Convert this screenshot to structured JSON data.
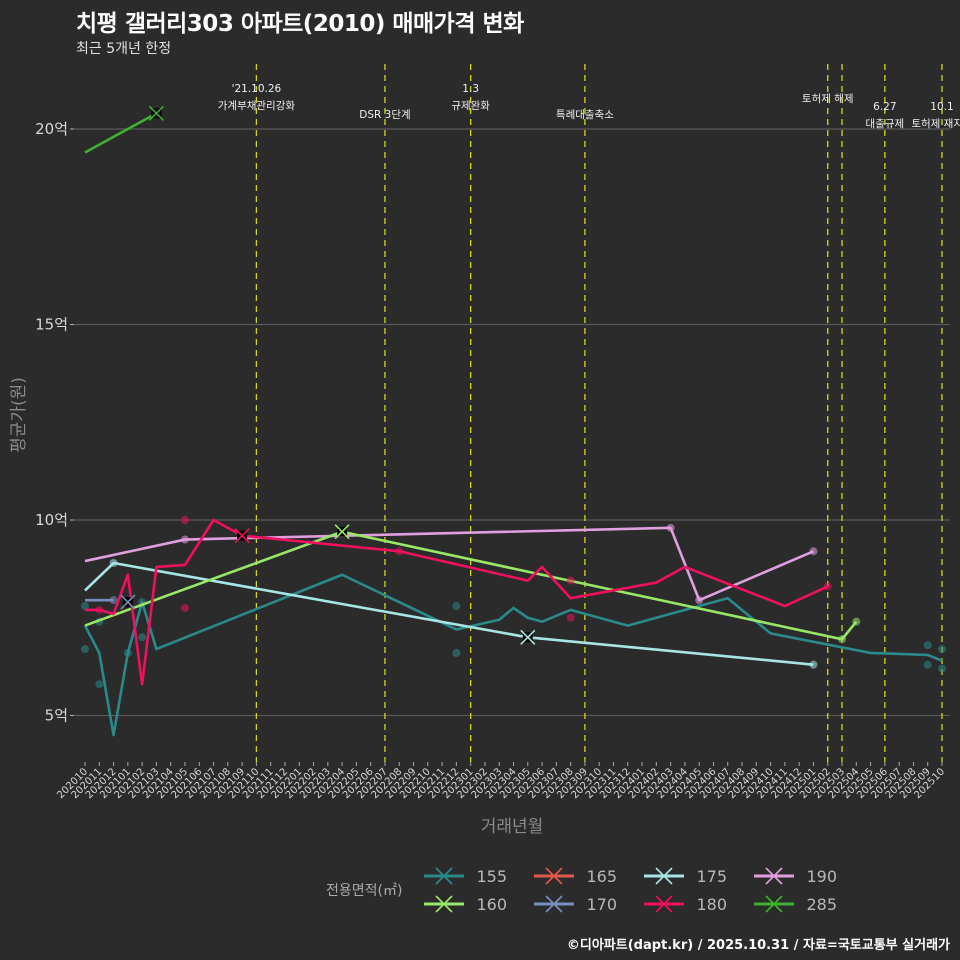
{
  "header": {
    "title": "치평 갤러리303 아파트(2010) 매매가격 변화",
    "subtitle": "최근 5개년 한정"
  },
  "footer": {
    "credit": "©디아파트(dapt.kr) / 2025.10.31 / 자료=국토교통부 실거래가"
  },
  "legend": {
    "title": "전용면적(㎡)",
    "items": [
      {
        "label": "155",
        "color": "#2a8a8a"
      },
      {
        "label": "165",
        "color": "#e0584c"
      },
      {
        "label": "175",
        "color": "#a8e6e6"
      },
      {
        "label": "190",
        "color": "#e0a0e0"
      },
      {
        "label": "160",
        "color": "#98e868"
      },
      {
        "label": "170",
        "color": "#7890c0"
      },
      {
        "label": "180",
        "color": "#f0105f"
      },
      {
        "label": "285",
        "color": "#40b030"
      }
    ]
  },
  "chart_data": {
    "type": "line",
    "title": "치평 갤러리303 아파트(2010) 매매가격 변화",
    "subtitle": "최근 5개년 한정",
    "xlabel": "거래년월",
    "ylabel": "평균가(원)",
    "ylim": [
      3.8,
      21.6
    ],
    "yticks": [
      {
        "value": 5,
        "label": "5억"
      },
      {
        "value": 10,
        "label": "10억"
      },
      {
        "value": 15,
        "label": "15억"
      },
      {
        "value": 20,
        "label": "20억"
      }
    ],
    "grid": true,
    "legend_position": "bottom",
    "categories": [
      "202010",
      "202011",
      "202012",
      "202101",
      "202102",
      "202103",
      "202104",
      "202105",
      "202106",
      "202107",
      "202108",
      "202109",
      "202110",
      "202111",
      "202112",
      "202201",
      "202202",
      "202203",
      "202204",
      "202205",
      "202206",
      "202207",
      "202208",
      "202209",
      "202210",
      "202211",
      "202212",
      "202301",
      "202302",
      "202303",
      "202304",
      "202305",
      "202306",
      "202307",
      "202308",
      "202309",
      "202310",
      "202311",
      "202312",
      "202401",
      "202402",
      "202403",
      "202404",
      "202405",
      "202406",
      "202407",
      "202408",
      "202409",
      "202410",
      "202411",
      "202412",
      "202501",
      "202502",
      "202503",
      "202504",
      "202505",
      "202506",
      "202507",
      "202508",
      "202509",
      "202510"
    ],
    "events": [
      {
        "month": "202110",
        "label_line1": "'21.10.26",
        "label_line2": "가계부채관리강화"
      },
      {
        "month": "202207",
        "label_line1": "",
        "label_line2": "DSR 3단계"
      },
      {
        "month": "202301",
        "label_line1": "1.3",
        "label_line2": "규제완화"
      },
      {
        "month": "202309",
        "label_line1": "",
        "label_line2": "특례대출축소"
      },
      {
        "month": "202502",
        "label_line1": "토허제 해제",
        "label_line2": ""
      },
      {
        "month": "202503",
        "label_line1": "",
        "label_line2": ""
      },
      {
        "month": "202506",
        "label_line1": "6.27",
        "label_line2": "대출규제"
      },
      {
        "month": "202510",
        "label_line1": "10.1",
        "label_line2": "토허제 재지정"
      }
    ],
    "series": [
      {
        "name": "155",
        "color": "#2a8a8a",
        "line": [
          [
            "202010",
            7.3
          ],
          [
            "202011",
            6.6
          ],
          [
            "202012",
            4.5
          ],
          [
            "202101",
            6.6
          ],
          [
            "202102",
            7.9
          ],
          [
            "202103",
            6.7
          ],
          [
            "202204",
            8.6
          ],
          [
            "202212",
            7.2
          ],
          [
            "202303",
            7.45
          ],
          [
            "202304",
            7.75
          ],
          [
            "202305",
            7.5
          ],
          [
            "202306",
            7.4
          ],
          [
            "202308",
            7.7
          ],
          [
            "202312",
            7.3
          ],
          [
            "202404",
            7.7
          ],
          [
            "202407",
            8.0
          ],
          [
            "202410",
            7.1
          ],
          [
            "202505",
            6.6
          ],
          [
            "202509",
            6.55
          ],
          [
            "202510",
            6.4
          ]
        ],
        "points": [
          [
            "202010",
            7.8
          ],
          [
            "202010",
            6.7
          ],
          [
            "202011",
            7.4
          ],
          [
            "202011",
            5.8
          ],
          [
            "202101",
            6.6
          ],
          [
            "202102",
            7.9
          ],
          [
            "202102",
            7.0
          ],
          [
            "202212",
            7.8
          ],
          [
            "202212",
            6.6
          ],
          [
            "202509",
            6.8
          ],
          [
            "202509",
            6.3
          ],
          [
            "202510",
            6.7
          ],
          [
            "202510",
            6.2
          ]
        ]
      },
      {
        "name": "165",
        "color": "#e0584c",
        "line": [],
        "points": []
      },
      {
        "name": "175",
        "color": "#a8e6e6",
        "line": [
          [
            "202010",
            8.2
          ],
          [
            "202012",
            8.9
          ],
          [
            "202305",
            7.0
          ],
          [
            "202501",
            6.3
          ]
        ],
        "points": [
          [
            "202012",
            8.9
          ],
          [
            "202305",
            7.0
          ],
          [
            "202501",
            6.3
          ]
        ]
      },
      {
        "name": "190",
        "color": "#e0a0e0",
        "line": [
          [
            "202010",
            8.95
          ],
          [
            "202105",
            9.5
          ],
          [
            "202403",
            9.8
          ],
          [
            "202405",
            7.95
          ],
          [
            "202501",
            9.2
          ]
        ],
        "points": [
          [
            "202105",
            9.5
          ],
          [
            "202403",
            9.8
          ],
          [
            "202405",
            7.95
          ],
          [
            "202501",
            9.2
          ]
        ]
      },
      {
        "name": "160",
        "color": "#98e868",
        "line": [
          [
            "202010",
            7.3
          ],
          [
            "202204",
            9.7
          ],
          [
            "202503",
            6.95
          ],
          [
            "202504",
            7.4
          ]
        ],
        "points": [
          [
            "202204",
            9.7
          ],
          [
            "202503",
            6.95
          ],
          [
            "202504",
            7.4
          ]
        ]
      },
      {
        "name": "170",
        "color": "#7890c0",
        "line": [
          [
            "202010",
            7.95
          ],
          [
            "202012",
            7.95
          ]
        ],
        "points": [
          [
            "202012",
            7.95
          ],
          [
            "202101",
            7.9
          ]
        ]
      },
      {
        "name": "180",
        "color": "#f0105f",
        "line": [
          [
            "202010",
            7.7
          ],
          [
            "202011",
            7.7
          ],
          [
            "202012",
            7.6
          ],
          [
            "202101",
            8.6
          ],
          [
            "202102",
            5.8
          ],
          [
            "202103",
            8.8
          ],
          [
            "202105",
            8.85
          ],
          [
            "202107",
            10.0
          ],
          [
            "202109",
            9.6
          ],
          [
            "202208",
            9.2
          ],
          [
            "202305",
            8.45
          ],
          [
            "202306",
            8.8
          ],
          [
            "202308",
            8.0
          ],
          [
            "202402",
            8.4
          ],
          [
            "202404",
            8.8
          ],
          [
            "202411",
            7.8
          ],
          [
            "202502",
            8.3
          ]
        ],
        "points": [
          [
            "202011",
            7.7
          ],
          [
            "202105",
            10.0
          ],
          [
            "202105",
            7.75
          ],
          [
            "202208",
            9.2
          ],
          [
            "202308",
            8.45
          ],
          [
            "202308",
            7.5
          ],
          [
            "202502",
            8.3
          ]
        ]
      },
      {
        "name": "285",
        "color": "#40b030",
        "line": [
          [
            "202010",
            19.4
          ],
          [
            "202103",
            20.4
          ]
        ],
        "points": [
          [
            "202103",
            20.4
          ]
        ]
      }
    ]
  }
}
